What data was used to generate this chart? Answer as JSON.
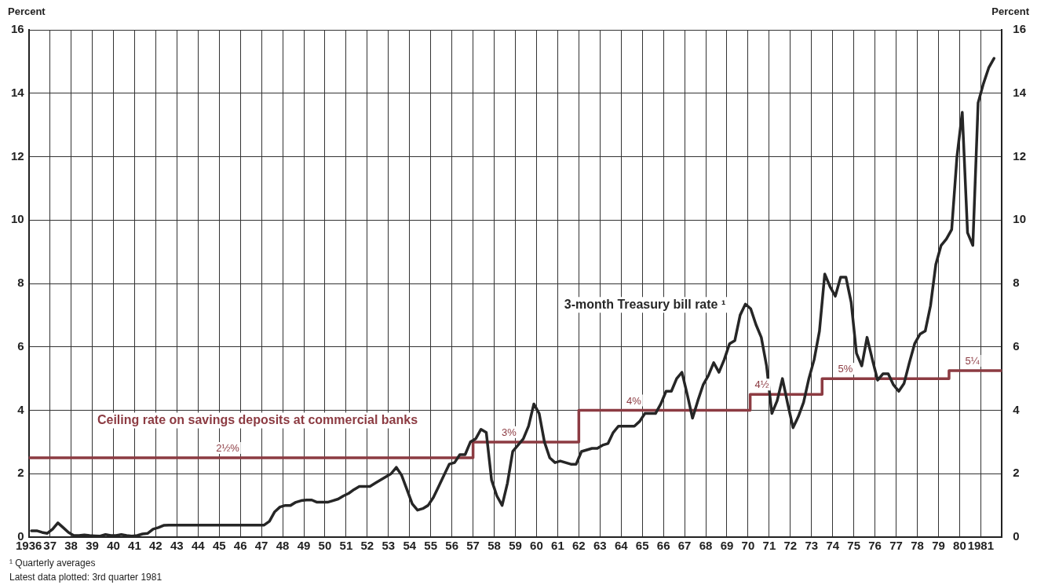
{
  "chart_data": {
    "type": "line",
    "ylabel": "Percent",
    "y2label": "Percent",
    "xlim": [
      1936,
      1982
    ],
    "xticks": [
      {
        "value": 1936,
        "label": "1936"
      },
      {
        "value": 1937,
        "label": "37"
      },
      {
        "value": 1938,
        "label": "38"
      },
      {
        "value": 1939,
        "label": "39"
      },
      {
        "value": 1940,
        "label": "40"
      },
      {
        "value": 1941,
        "label": "41"
      },
      {
        "value": 1942,
        "label": "42"
      },
      {
        "value": 1943,
        "label": "43"
      },
      {
        "value": 1944,
        "label": "44"
      },
      {
        "value": 1945,
        "label": "45"
      },
      {
        "value": 1946,
        "label": "46"
      },
      {
        "value": 1947,
        "label": "47"
      },
      {
        "value": 1948,
        "label": "48"
      },
      {
        "value": 1949,
        "label": "49"
      },
      {
        "value": 1950,
        "label": "50"
      },
      {
        "value": 1951,
        "label": "51"
      },
      {
        "value": 1952,
        "label": "52"
      },
      {
        "value": 1953,
        "label": "53"
      },
      {
        "value": 1954,
        "label": "54"
      },
      {
        "value": 1955,
        "label": "55"
      },
      {
        "value": 1956,
        "label": "56"
      },
      {
        "value": 1957,
        "label": "57"
      },
      {
        "value": 1958,
        "label": "58"
      },
      {
        "value": 1959,
        "label": "59"
      },
      {
        "value": 1960,
        "label": "60"
      },
      {
        "value": 1961,
        "label": "61"
      },
      {
        "value": 1962,
        "label": "62"
      },
      {
        "value": 1963,
        "label": "63"
      },
      {
        "value": 1964,
        "label": "64"
      },
      {
        "value": 1965,
        "label": "65"
      },
      {
        "value": 1966,
        "label": "66"
      },
      {
        "value": 1967,
        "label": "67"
      },
      {
        "value": 1968,
        "label": "68"
      },
      {
        "value": 1969,
        "label": "69"
      },
      {
        "value": 1970,
        "label": "70"
      },
      {
        "value": 1971,
        "label": "71"
      },
      {
        "value": 1972,
        "label": "72"
      },
      {
        "value": 1973,
        "label": "73"
      },
      {
        "value": 1974,
        "label": "74"
      },
      {
        "value": 1975,
        "label": "75"
      },
      {
        "value": 1976,
        "label": "76"
      },
      {
        "value": 1977,
        "label": "77"
      },
      {
        "value": 1978,
        "label": "78"
      },
      {
        "value": 1979,
        "label": "79"
      },
      {
        "value": 1980,
        "label": "80"
      },
      {
        "value": 1981,
        "label": "1981"
      }
    ],
    "ylim": [
      0,
      16
    ],
    "yticks": [
      0,
      2,
      4,
      6,
      8,
      10,
      12,
      14,
      16
    ],
    "y2lim": [
      0,
      16
    ],
    "y2ticks": [
      0,
      2,
      4,
      6,
      8,
      10,
      12,
      14,
      16
    ],
    "grid": true,
    "legend": false,
    "marker": "none",
    "line_style": "solid",
    "series": [
      {
        "name": "3-month Treasury bill rate ¹",
        "type": "line",
        "color": "#262626",
        "x": [
          1936.125,
          1936.375,
          1936.625,
          1936.875,
          1937.125,
          1937.375,
          1937.625,
          1937.875,
          1938.125,
          1938.375,
          1938.625,
          1938.875,
          1939.125,
          1939.375,
          1939.625,
          1939.875,
          1940.125,
          1940.375,
          1940.625,
          1940.875,
          1941.125,
          1941.375,
          1941.625,
          1941.875,
          1942.125,
          1942.375,
          1942.625,
          1942.875,
          1943.125,
          1943.875,
          1944.875,
          1945.875,
          1946.875,
          1947.125,
          1947.375,
          1947.625,
          1947.875,
          1948.125,
          1948.375,
          1948.625,
          1948.875,
          1949.125,
          1949.375,
          1949.625,
          1949.875,
          1950.125,
          1950.375,
          1950.625,
          1950.875,
          1951.125,
          1951.375,
          1951.625,
          1951.875,
          1952.125,
          1952.375,
          1952.625,
          1952.875,
          1953.125,
          1953.375,
          1953.625,
          1953.875,
          1954.125,
          1954.375,
          1954.625,
          1954.875,
          1955.125,
          1955.375,
          1955.625,
          1955.875,
          1956.125,
          1956.375,
          1956.625,
          1956.875,
          1957.125,
          1957.375,
          1957.625,
          1957.875,
          1958.125,
          1958.375,
          1958.625,
          1958.875,
          1959.125,
          1959.375,
          1959.625,
          1959.875,
          1960.125,
          1960.375,
          1960.625,
          1960.875,
          1961.125,
          1961.375,
          1961.625,
          1961.875,
          1962.125,
          1962.375,
          1962.625,
          1962.875,
          1963.125,
          1963.375,
          1963.625,
          1963.875,
          1964.125,
          1964.375,
          1964.625,
          1964.875,
          1965.125,
          1965.375,
          1965.625,
          1965.875,
          1966.125,
          1966.375,
          1966.625,
          1966.875,
          1967.125,
          1967.375,
          1967.625,
          1967.875,
          1968.125,
          1968.375,
          1968.625,
          1968.875,
          1969.125,
          1969.375,
          1969.625,
          1969.875,
          1970.125,
          1970.375,
          1970.625,
          1970.875,
          1971.125,
          1971.375,
          1971.625,
          1971.875,
          1972.125,
          1972.375,
          1972.625,
          1972.875,
          1973.125,
          1973.375,
          1973.625,
          1973.875,
          1974.125,
          1974.375,
          1974.625,
          1974.875,
          1975.125,
          1975.375,
          1975.625,
          1975.875,
          1976.125,
          1976.375,
          1976.625,
          1976.875,
          1977.125,
          1977.375,
          1977.625,
          1977.875,
          1978.125,
          1978.375,
          1978.625,
          1978.875,
          1979.125,
          1979.375,
          1979.625,
          1979.875,
          1980.125,
          1980.375,
          1980.625,
          1980.875,
          1981.125,
          1981.375,
          1981.625
        ],
        "values": [
          0.2,
          0.2,
          0.15,
          0.12,
          0.25,
          0.45,
          0.3,
          0.15,
          0.05,
          0.05,
          0.07,
          0.05,
          0.04,
          0.03,
          0.08,
          0.05,
          0.05,
          0.08,
          0.05,
          0.03,
          0.05,
          0.1,
          0.12,
          0.25,
          0.3,
          0.37,
          0.38,
          0.38,
          0.38,
          0.38,
          0.38,
          0.38,
          0.38,
          0.38,
          0.5,
          0.8,
          0.95,
          1.0,
          1.0,
          1.1,
          1.15,
          1.17,
          1.17,
          1.1,
          1.1,
          1.1,
          1.15,
          1.2,
          1.3,
          1.38,
          1.5,
          1.6,
          1.6,
          1.6,
          1.7,
          1.8,
          1.9,
          2.0,
          2.2,
          1.95,
          1.5,
          1.05,
          0.85,
          0.9,
          1.0,
          1.25,
          1.6,
          1.95,
          2.3,
          2.35,
          2.6,
          2.6,
          3.0,
          3.1,
          3.4,
          3.3,
          1.8,
          1.3,
          1.0,
          1.7,
          2.7,
          2.9,
          3.1,
          3.5,
          4.2,
          3.9,
          3.0,
          2.5,
          2.35,
          2.4,
          2.35,
          2.3,
          2.3,
          2.7,
          2.75,
          2.8,
          2.8,
          2.9,
          2.95,
          3.3,
          3.5,
          3.5,
          3.5,
          3.5,
          3.65,
          3.9,
          3.9,
          3.9,
          4.2,
          4.6,
          4.6,
          5.0,
          5.2,
          4.5,
          3.75,
          4.3,
          4.8,
          5.1,
          5.5,
          5.2,
          5.6,
          6.1,
          6.2,
          7.0,
          7.35,
          7.2,
          6.7,
          6.3,
          5.4,
          3.9,
          4.3,
          5.0,
          4.2,
          3.45,
          3.8,
          4.25,
          5.0,
          5.6,
          6.5,
          8.3,
          7.9,
          7.6,
          8.2,
          8.2,
          7.4,
          5.8,
          5.4,
          6.3,
          5.6,
          4.95,
          5.15,
          5.15,
          4.8,
          4.6,
          4.85,
          5.5,
          6.1,
          6.4,
          6.5,
          7.3,
          8.6,
          9.2,
          9.4,
          9.7,
          12.0,
          13.4,
          9.6,
          9.2,
          13.7,
          14.3,
          14.8,
          15.1
        ]
      },
      {
        "name": "Ceiling rate on savings deposits at commercial banks",
        "type": "step",
        "color": "#8c3b42",
        "x": [
          1936,
          1957,
          1962,
          1970.1,
          1973.5,
          1979.5,
          1982
        ],
        "values": [
          2.5,
          3,
          4,
          4.5,
          5,
          5.25,
          5.25
        ]
      }
    ],
    "annotations": [
      {
        "text": "2½%",
        "x": 1945.4,
        "y": 2.5
      },
      {
        "text": "3%",
        "x": 1958.7,
        "y": 3
      },
      {
        "text": "4%",
        "x": 1964.6,
        "y": 4
      },
      {
        "text": "4½",
        "x": 1970.65,
        "y": 4.5
      },
      {
        "text": "5%",
        "x": 1974.6,
        "y": 5
      },
      {
        "text": "5¼",
        "x": 1980.6,
        "y": 5.25
      },
      "¹ Quarterly averages",
      "Latest data plotted: 3rd quarter 1981"
    ]
  }
}
